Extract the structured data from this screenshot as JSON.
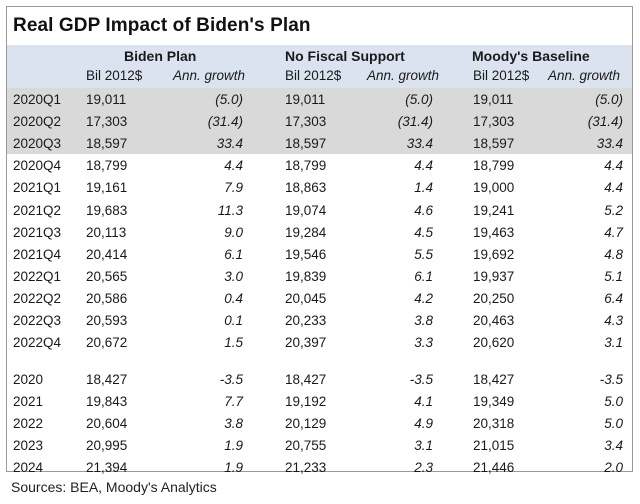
{
  "title": "Real GDP Impact of Biden's Plan",
  "groups": [
    "Biden Plan",
    "No Fiscal Support",
    "Moody's Baseline"
  ],
  "subheaders": {
    "level": "Bil 2012$",
    "growth": "Ann. growth"
  },
  "quarterly": [
    {
      "period": "2020Q1",
      "biden": [
        "19,011",
        "(5.0)"
      ],
      "nofiscal": [
        "19,011",
        "(5.0)"
      ],
      "baseline": [
        "19,011",
        "(5.0)"
      ]
    },
    {
      "period": "2020Q2",
      "biden": [
        "17,303",
        "(31.4)"
      ],
      "nofiscal": [
        "17,303",
        "(31.4)"
      ],
      "baseline": [
        "17,303",
        "(31.4)"
      ]
    },
    {
      "period": "2020Q3",
      "biden": [
        "18,597",
        "33.4"
      ],
      "nofiscal": [
        "18,597",
        "33.4"
      ],
      "baseline": [
        "18,597",
        "33.4"
      ]
    },
    {
      "period": "2020Q4",
      "biden": [
        "18,799",
        "4.4"
      ],
      "nofiscal": [
        "18,799",
        "4.4"
      ],
      "baseline": [
        "18,799",
        "4.4"
      ]
    },
    {
      "period": "2021Q1",
      "biden": [
        "19,161",
        "7.9"
      ],
      "nofiscal": [
        "18,863",
        "1.4"
      ],
      "baseline": [
        "19,000",
        "4.4"
      ]
    },
    {
      "period": "2021Q2",
      "biden": [
        "19,683",
        "11.3"
      ],
      "nofiscal": [
        "19,074",
        "4.6"
      ],
      "baseline": [
        "19,241",
        "5.2"
      ]
    },
    {
      "period": "2021Q3",
      "biden": [
        "20,113",
        "9.0"
      ],
      "nofiscal": [
        "19,284",
        "4.5"
      ],
      "baseline": [
        "19,463",
        "4.7"
      ]
    },
    {
      "period": "2021Q4",
      "biden": [
        "20,414",
        "6.1"
      ],
      "nofiscal": [
        "19,546",
        "5.5"
      ],
      "baseline": [
        "19,692",
        "4.8"
      ]
    },
    {
      "period": "2022Q1",
      "biden": [
        "20,565",
        "3.0"
      ],
      "nofiscal": [
        "19,839",
        "6.1"
      ],
      "baseline": [
        "19,937",
        "5.1"
      ]
    },
    {
      "period": "2022Q2",
      "biden": [
        "20,586",
        "0.4"
      ],
      "nofiscal": [
        "20,045",
        "4.2"
      ],
      "baseline": [
        "20,250",
        "6.4"
      ]
    },
    {
      "period": "2022Q3",
      "biden": [
        "20,593",
        "0.1"
      ],
      "nofiscal": [
        "20,233",
        "3.8"
      ],
      "baseline": [
        "20,463",
        "4.3"
      ]
    },
    {
      "period": "2022Q4",
      "biden": [
        "20,672",
        "1.5"
      ],
      "nofiscal": [
        "20,397",
        "3.3"
      ],
      "baseline": [
        "20,620",
        "3.1"
      ]
    }
  ],
  "annual": [
    {
      "period": "2020",
      "biden": [
        "18,427",
        "-3.5"
      ],
      "nofiscal": [
        "18,427",
        "-3.5"
      ],
      "baseline": [
        "18,427",
        "-3.5"
      ]
    },
    {
      "period": "2021",
      "biden": [
        "19,843",
        "7.7"
      ],
      "nofiscal": [
        "19,192",
        "4.1"
      ],
      "baseline": [
        "19,349",
        "5.0"
      ]
    },
    {
      "period": "2022",
      "biden": [
        "20,604",
        "3.8"
      ],
      "nofiscal": [
        "20,129",
        "4.9"
      ],
      "baseline": [
        "20,318",
        "5.0"
      ]
    },
    {
      "period": "2023",
      "biden": [
        "20,995",
        "1.9"
      ],
      "nofiscal": [
        "20,755",
        "3.1"
      ],
      "baseline": [
        "21,015",
        "3.4"
      ]
    },
    {
      "period": "2024",
      "biden": [
        "21,394",
        "1.9"
      ],
      "nofiscal": [
        "21,233",
        "2.3"
      ],
      "baseline": [
        "21,446",
        "2.0"
      ]
    }
  ],
  "source": "Sources: BEA, Moody's Analytics"
}
